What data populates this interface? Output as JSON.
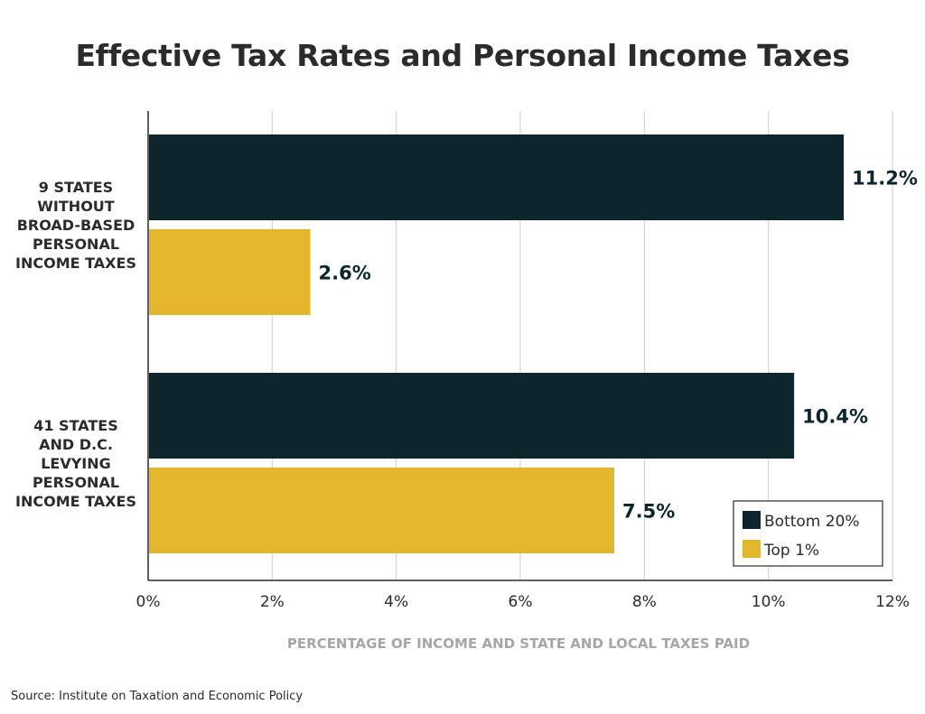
{
  "chart_data": {
    "type": "bar",
    "orientation": "horizontal",
    "title": "Effective Tax Rates and Personal Income Taxes",
    "categories": [
      [
        "9 STATES",
        "WITHOUT",
        "BROAD-BASED",
        "PERSONAL",
        "INCOME TAXES"
      ],
      [
        "41 STATES",
        "AND D.C.",
        "LEVYING",
        "PERSONAL",
        "INCOME TAXES"
      ]
    ],
    "series": [
      {
        "name": "Bottom 20%",
        "color": "#0c262c",
        "values": [
          11.2,
          10.4
        ],
        "labels": [
          "11.2%",
          "10.4%"
        ]
      },
      {
        "name": "Top 1%",
        "color": "#e3b62b",
        "values": [
          2.6,
          7.5
        ],
        "labels": [
          "2.6%",
          "7.5%"
        ]
      }
    ],
    "xlim": [
      0,
      12
    ],
    "xticks": [
      0,
      2,
      4,
      6,
      8,
      10,
      12
    ],
    "xtick_labels": [
      "0%",
      "2%",
      "4%",
      "6%",
      "8%",
      "10%",
      "12%"
    ],
    "xlabel": "PERCENTAGE OF INCOME AND STATE AND LOCAL TAXES PAID",
    "grid": true,
    "legend_position": "bottom-right"
  },
  "source": "Source: Institute on Taxation and Economic Policy"
}
